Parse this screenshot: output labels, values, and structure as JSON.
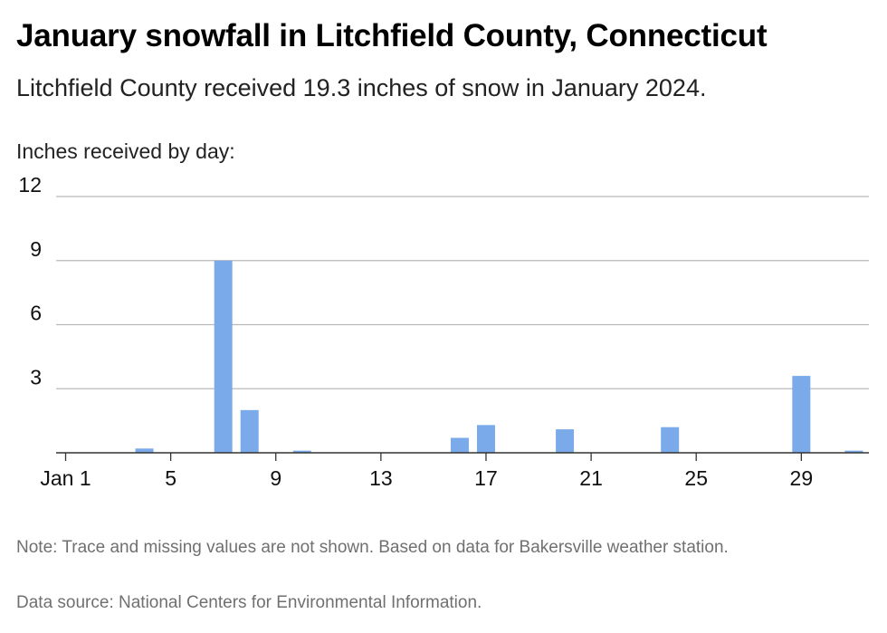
{
  "title": "January snowfall in Litchfield County, Connecticut",
  "subtitle": "Litchfield County received 19.3 inches of snow in January 2024.",
  "note": "Note: Trace and missing values are not shown. Based on data for Bakersville weather station.",
  "source": "Data source: National Centers for Environmental Information.",
  "colors": {
    "bar": "#7baaeb",
    "grid": "#b9b9b9",
    "axis": "#333333"
  },
  "chart_data": {
    "type": "bar",
    "ylabel": "Inches received by day:",
    "xlabel": "",
    "ylim": [
      0,
      12
    ],
    "yticks": [
      3,
      6,
      9,
      12
    ],
    "xticks": [
      {
        "day": 1,
        "label": "Jan 1"
      },
      {
        "day": 5,
        "label": "5"
      },
      {
        "day": 9,
        "label": "9"
      },
      {
        "day": 13,
        "label": "13"
      },
      {
        "day": 17,
        "label": "17"
      },
      {
        "day": 21,
        "label": "21"
      },
      {
        "day": 25,
        "label": "25"
      },
      {
        "day": 29,
        "label": "29"
      }
    ],
    "x": [
      1,
      2,
      3,
      4,
      5,
      6,
      7,
      8,
      9,
      10,
      11,
      12,
      13,
      14,
      15,
      16,
      17,
      18,
      19,
      20,
      21,
      22,
      23,
      24,
      25,
      26,
      27,
      28,
      29,
      30,
      31
    ],
    "values": [
      0,
      0,
      0,
      0.2,
      0,
      0,
      9.0,
      2.0,
      0,
      0.1,
      0,
      0,
      0,
      0,
      0,
      0.7,
      1.3,
      0,
      0,
      1.1,
      0,
      0,
      0,
      1.2,
      0,
      0,
      0,
      0,
      3.6,
      0,
      0.1
    ],
    "grid": true
  }
}
